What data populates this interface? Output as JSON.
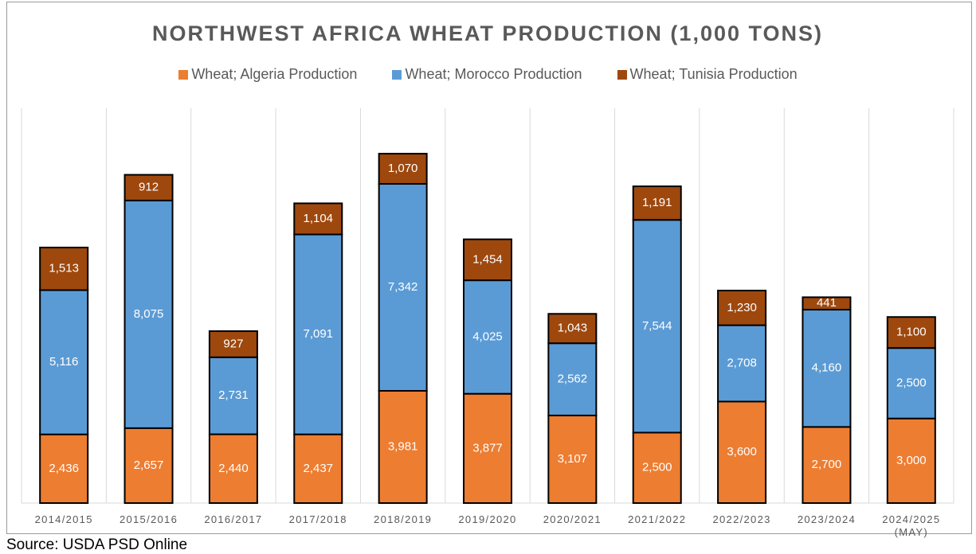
{
  "chart_data": {
    "type": "stacked_bar",
    "title": "NORTHWEST AFRICA WHEAT PRODUCTION (1,000 TONS)",
    "categories": [
      "2014/2015",
      "2015/2016",
      "2016/2017",
      "2017/2018",
      "2018/2019",
      "2019/2020",
      "2020/2021",
      "2021/2022",
      "2022/2023",
      "2023/2024",
      "2024/2025 (MAY)"
    ],
    "series": [
      {
        "name": "Wheat; Algeria Production",
        "color": "#ED7D31",
        "values": [
          2436,
          2657,
          2440,
          2437,
          3981,
          3877,
          3107,
          2500,
          3600,
          2700,
          3000
        ],
        "value_labels": [
          "2,436",
          "2,657",
          "2,440",
          "2,437",
          "3,981",
          "3,877",
          "3,107",
          "2,500",
          "3,600",
          "2,700",
          "3,000"
        ]
      },
      {
        "name": "Wheat; Morocco Production",
        "color": "#5B9BD5",
        "values": [
          5116,
          8075,
          2731,
          7091,
          7342,
          4025,
          2562,
          7544,
          2708,
          4160,
          2500
        ],
        "value_labels": [
          "5,116",
          "8,075",
          "2,731",
          "7,091",
          "7,342",
          "4,025",
          "2,562",
          "7,544",
          "2,708",
          "4,160",
          "2,500"
        ]
      },
      {
        "name": "Wheat; Tunisia Production",
        "color": "#9E480E",
        "values": [
          1513,
          912,
          927,
          1104,
          1070,
          1454,
          1043,
          1191,
          1230,
          441,
          1100
        ],
        "value_labels": [
          "1,513",
          "912",
          "927",
          "1,104",
          "1,070",
          "1,454",
          "1,043",
          "1,191",
          "1,230",
          "441",
          "1,100"
        ]
      }
    ],
    "source": "Source: USDA PSD Online"
  }
}
